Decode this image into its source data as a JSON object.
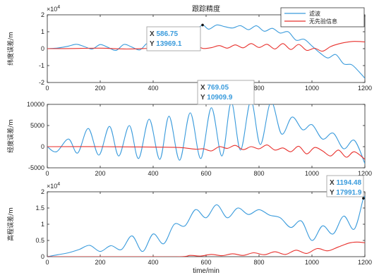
{
  "chart_data": [
    {
      "type": "line",
      "title": "跟踪精度",
      "ylabel": "纬度误差/m",
      "xlabel": "",
      "xlim": [
        0,
        1200
      ],
      "ylim": [
        -20000,
        20000
      ],
      "y_exponent": "×10^4",
      "x_ticks": [
        "0",
        "200",
        "400",
        "600",
        "800",
        "1000",
        "1200"
      ],
      "y_ticks": [
        "-2",
        "-1",
        "0",
        "1",
        "2"
      ],
      "legend": {
        "position": "top-right",
        "entries": [
          "滤波",
          "无先验信息"
        ]
      },
      "datatip": {
        "x_label": "X",
        "x_value": "586.75",
        "y_label": "Y",
        "y_value": "13969.1",
        "x": 586.75,
        "y": 13969.1
      },
      "series": [
        {
          "name": "滤波",
          "color": "#3a9bdc",
          "x": [
            0,
            40,
            80,
            110,
            140,
            170,
            200,
            230,
            260,
            290,
            320,
            350,
            380,
            410,
            440,
            470,
            500,
            530,
            560,
            586.75,
            610,
            640,
            670,
            700,
            730,
            760,
            790,
            820,
            850,
            880,
            910,
            940,
            970,
            1000,
            1030,
            1060,
            1090,
            1120,
            1150,
            1180,
            1200
          ],
          "y": [
            0,
            400,
            1500,
            2600,
            1200,
            -200,
            2400,
            700,
            -1000,
            2500,
            900,
            -700,
            3300,
            800,
            -300,
            4100,
            1200,
            7000,
            10500,
            13969.1,
            11500,
            14000,
            13000,
            12200,
            13600,
            11200,
            13500,
            10300,
            12000,
            9200,
            10000,
            5000,
            5600,
            1600,
            -2500,
            -5500,
            -3500,
            -9000,
            -9500,
            -14000,
            -17500
          ]
        },
        {
          "name": "无先验信息",
          "color": "#e8302c",
          "x": [
            0,
            100,
            200,
            300,
            400,
            450,
            500,
            530,
            560,
            590,
            620,
            650,
            680,
            710,
            740,
            770,
            800,
            830,
            860,
            890,
            920,
            950,
            980,
            1010,
            1040,
            1070,
            1100,
            1130,
            1160,
            1200
          ],
          "y": [
            0,
            100,
            300,
            -200,
            200,
            -300,
            700,
            -300,
            1500,
            100,
            600,
            1800,
            300,
            2200,
            500,
            3000,
            700,
            2600,
            -200,
            3000,
            -500,
            2500,
            -1000,
            200,
            -1500,
            1200,
            2800,
            3800,
            4300,
            4000
          ]
        }
      ]
    },
    {
      "type": "line",
      "title": "",
      "ylabel": "经度误差/m",
      "xlabel": "",
      "xlim": [
        0,
        1200
      ],
      "ylim": [
        -5000,
        10000
      ],
      "x_ticks": [
        "0",
        "200",
        "400",
        "600",
        "800",
        "1000",
        "1200"
      ],
      "y_ticks": [
        "-5000",
        "0",
        "5000",
        "10000"
      ],
      "datatip": {
        "x_label": "X",
        "x_value": "769.05",
        "y_label": "Y",
        "y_value": "10909.9",
        "x": 769.05,
        "y": 10909.9
      },
      "series": [
        {
          "name": "滤波",
          "color": "#3a9bdc",
          "x": [
            0,
            35,
            80,
            115,
            155,
            195,
            235,
            270,
            310,
            345,
            385,
            425,
            460,
            500,
            540,
            580,
            620,
            660,
            695,
            730,
            769.05,
            805,
            845,
            885,
            925,
            965,
            1000,
            1040,
            1080,
            1120,
            1160,
            1200
          ],
          "y": [
            0,
            -1200,
            1800,
            -1500,
            4300,
            -2000,
            4800,
            -2200,
            5000,
            -2800,
            6500,
            -3000,
            7200,
            -3200,
            8000,
            -2800,
            9200,
            -2200,
            10500,
            -800,
            10909.9,
            500,
            10600,
            3000,
            7000,
            4000,
            5200,
            1800,
            3200,
            -500,
            1500,
            -4000
          ]
        },
        {
          "name": "无先验信息",
          "color": "#e8302c",
          "x": [
            0,
            200,
            400,
            500,
            560,
            590,
            620,
            650,
            680,
            710,
            740,
            770,
            800,
            830,
            860,
            890,
            920,
            950,
            980,
            1010,
            1040,
            1070,
            1100,
            1130,
            1160,
            1200
          ],
          "y": [
            0,
            0,
            -100,
            -200,
            -600,
            -500,
            -1000,
            0,
            -400,
            300,
            -700,
            0,
            -500,
            400,
            -800,
            -300,
            -1200,
            100,
            -1700,
            -200,
            -1000,
            -2200,
            -800,
            -2500,
            -1200,
            -3000
          ]
        }
      ]
    },
    {
      "type": "line",
      "title": "",
      "ylabel": "高程误差/m",
      "xlabel": "time/min",
      "xlim": [
        0,
        1200
      ],
      "ylim": [
        0,
        20000
      ],
      "y_exponent": "×10^4",
      "x_ticks": [
        "0",
        "200",
        "400",
        "600",
        "800",
        "1000",
        "1200"
      ],
      "y_ticks": [
        "0",
        "0.5",
        "1",
        "1.5",
        "2"
      ],
      "datatip": {
        "x_label": "X",
        "x_value": "1194.48",
        "y_label": "Y",
        "y_value": "17991.9",
        "x": 1194.48,
        "y": 17991.9
      },
      "series": [
        {
          "name": "滤波",
          "color": "#3a9bdc",
          "x": [
            0,
            40,
            80,
            120,
            160,
            200,
            240,
            280,
            320,
            360,
            400,
            440,
            480,
            520,
            560,
            600,
            640,
            680,
            720,
            760,
            800,
            840,
            880,
            920,
            960,
            1000,
            1040,
            1080,
            1120,
            1160,
            1194.48,
            1200
          ],
          "y": [
            0,
            600,
            1200,
            2200,
            3500,
            1600,
            3400,
            2200,
            6400,
            1600,
            7000,
            4000,
            10000,
            9500,
            14500,
            12000,
            16000,
            12000,
            15000,
            13000,
            14500,
            12800,
            12000,
            9000,
            11000,
            5000,
            9500,
            7000,
            12500,
            8500,
            17991.9,
            17500
          ]
        },
        {
          "name": "无先验信息",
          "color": "#e8302c",
          "x": [
            0,
            300,
            500,
            540,
            580,
            620,
            660,
            700,
            740,
            780,
            820,
            860,
            900,
            940,
            980,
            1020,
            1060,
            1100,
            1140,
            1170,
            1200
          ],
          "y": [
            0,
            0,
            0,
            400,
            200,
            700,
            300,
            900,
            400,
            1200,
            600,
            1500,
            700,
            2000,
            1000,
            2500,
            1800,
            3000,
            4200,
            4500,
            4300
          ]
        }
      ]
    }
  ]
}
